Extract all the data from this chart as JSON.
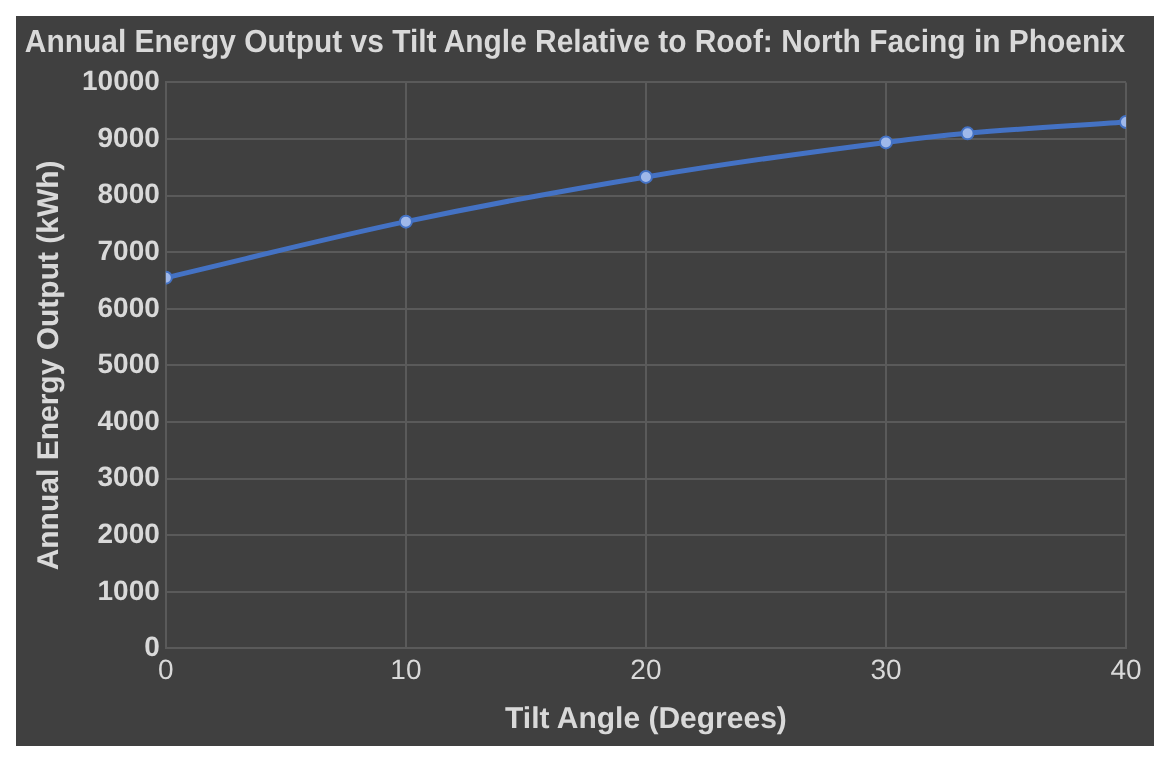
{
  "chart_data": {
    "type": "line",
    "title": "Annual Energy Output vs Tilt Angle Relative to Roof: North Facing in Phoenix",
    "xlabel": "Tilt Angle (Degrees)",
    "ylabel": "Annual Energy Output (kWh)",
    "x": [
      0,
      10,
      20,
      30,
      33.4,
      40
    ],
    "series": [
      {
        "color": "#4472c4",
        "values": [
          6550,
          7540,
          8330,
          8940,
          9100,
          9300
        ]
      }
    ],
    "xlim": [
      0,
      40
    ],
    "xticks": [
      0,
      10,
      20,
      30,
      40
    ],
    "ylim": [
      0,
      10000
    ],
    "yticks": [
      0,
      1000,
      2000,
      3000,
      4000,
      5000,
      6000,
      7000,
      8000,
      9000,
      10000
    ],
    "grid": true,
    "legend": false,
    "marker": "circle",
    "line_style": "solid"
  }
}
